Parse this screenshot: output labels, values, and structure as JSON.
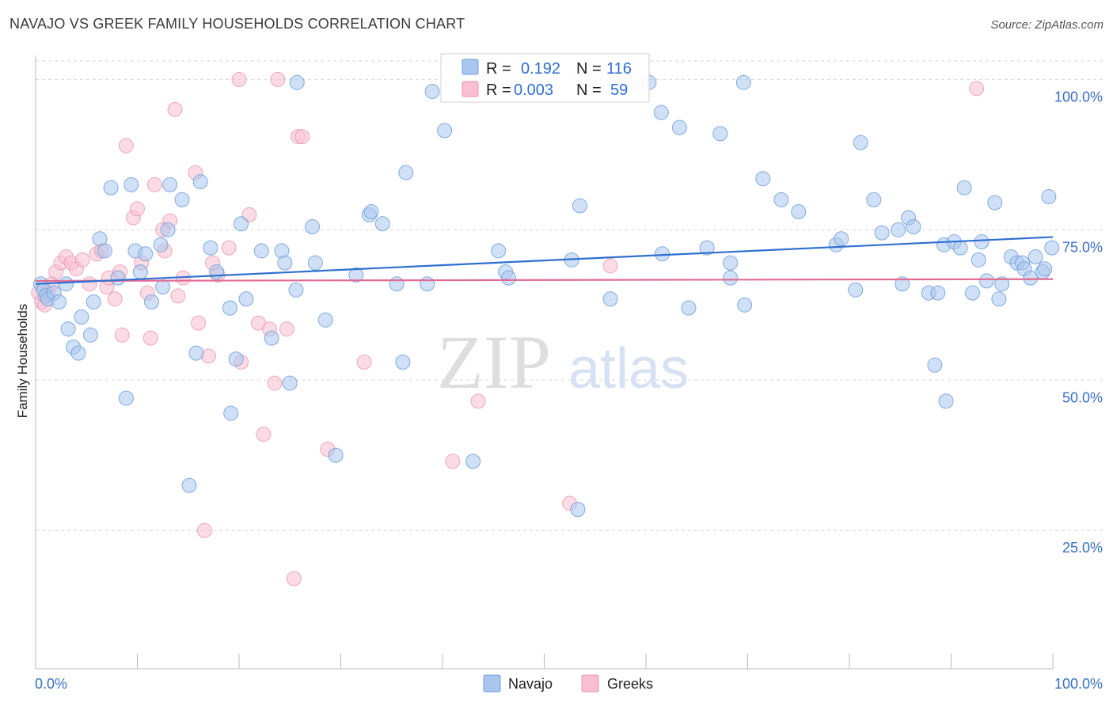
{
  "title": "NAVAJO VS GREEK FAMILY HOUSEHOLDS CORRELATION CHART",
  "source": "Source: ZipAtlas.com",
  "watermark": {
    "zip": "ZIP",
    "atlas": "atlas"
  },
  "legend_box": {
    "r_label": "R =",
    "n_label": "N =",
    "navajo": {
      "r": "0.192",
      "n": "116"
    },
    "greeks": {
      "r": "0.003",
      "n": "59"
    }
  },
  "bottom_legend": {
    "navajo": "Navajo",
    "greeks": "Greeks"
  },
  "colors": {
    "navajo_fill": "#a9c6ee",
    "navajo_stroke": "#6f9fdc",
    "navajo_line": "#2f6fd0",
    "greeks_fill": "#f7bfd0",
    "greeks_stroke": "#e996b0",
    "greeks_line": "#e06a92",
    "grid": "#d6d6d6",
    "tick_label": "#3a6fc4"
  },
  "chart_data": {
    "type": "scatter",
    "title": "NAVAJO VS GREEK FAMILY HOUSEHOLDS CORRELATION CHART",
    "xlabel": "",
    "ylabel": "Family Households",
    "xlim": [
      0,
      100
    ],
    "ylim": [
      2,
      104
    ],
    "x_tick_labels": [
      "0.0%",
      "100.0%"
    ],
    "y_ticks": [
      25,
      50,
      75,
      100
    ],
    "y_tick_labels": [
      "25.0%",
      "50.0%",
      "75.0%",
      "100.0%"
    ],
    "grid": "horizontal dashed",
    "legend": "top-center",
    "series": [
      {
        "name": "Navajo",
        "r": 0.192,
        "n": 116,
        "trend": {
          "x": [
            0,
            100
          ],
          "y": [
            66.0,
            73.8
          ]
        },
        "points": [
          [
            0.5,
            66
          ],
          [
            0.8,
            65
          ],
          [
            1,
            64
          ],
          [
            1.2,
            63.5
          ],
          [
            1.8,
            64.5
          ],
          [
            2.3,
            63
          ],
          [
            3,
            66
          ],
          [
            3.2,
            58.5
          ],
          [
            3.7,
            55.5
          ],
          [
            4.2,
            54.5
          ],
          [
            4.5,
            60.5
          ],
          [
            5.4,
            57.5
          ],
          [
            5.7,
            63
          ],
          [
            6.3,
            73.5
          ],
          [
            6.8,
            71.5
          ],
          [
            7.4,
            82
          ],
          [
            8.1,
            67
          ],
          [
            8.9,
            47
          ],
          [
            9.4,
            82.5
          ],
          [
            9.8,
            71.5
          ],
          [
            10.3,
            68
          ],
          [
            10.8,
            71
          ],
          [
            11.4,
            63
          ],
          [
            12.3,
            72.5
          ],
          [
            12.5,
            65.5
          ],
          [
            13,
            75
          ],
          [
            13.2,
            82.5
          ],
          [
            14.4,
            80
          ],
          [
            15.1,
            32.5
          ],
          [
            15.8,
            54.5
          ],
          [
            16.2,
            83
          ],
          [
            17.2,
            72
          ],
          [
            17.8,
            68
          ],
          [
            19.1,
            62
          ],
          [
            19.2,
            44.5
          ],
          [
            19.7,
            53.5
          ],
          [
            20.2,
            76
          ],
          [
            20.7,
            63.5
          ],
          [
            22.2,
            71.5
          ],
          [
            23.2,
            57
          ],
          [
            24.2,
            71.5
          ],
          [
            24.5,
            69.5
          ],
          [
            25,
            49.5
          ],
          [
            25.6,
            65
          ],
          [
            25.7,
            99.5
          ],
          [
            27.2,
            75.5
          ],
          [
            27.5,
            69.5
          ],
          [
            28.5,
            60
          ],
          [
            29.5,
            37.5
          ],
          [
            31.5,
            67.5
          ],
          [
            32.8,
            77.5
          ],
          [
            33,
            78
          ],
          [
            34.1,
            76
          ],
          [
            35.5,
            66
          ],
          [
            36.1,
            53
          ],
          [
            36.4,
            84.5
          ],
          [
            38.5,
            66
          ],
          [
            39,
            98
          ],
          [
            40.2,
            91.5
          ],
          [
            43,
            36.5
          ],
          [
            45.5,
            71.5
          ],
          [
            46.2,
            68
          ],
          [
            46.5,
            67
          ],
          [
            52.7,
            70
          ],
          [
            53.3,
            28.5
          ],
          [
            53.5,
            79
          ],
          [
            56.5,
            63.5
          ],
          [
            60.3,
            99.5
          ],
          [
            61.5,
            94.5
          ],
          [
            61.6,
            71
          ],
          [
            63.3,
            92
          ],
          [
            64.2,
            62
          ],
          [
            66,
            72
          ],
          [
            67.3,
            91
          ],
          [
            68.3,
            67
          ],
          [
            68.3,
            69.5
          ],
          [
            69.6,
            99.5
          ],
          [
            69.7,
            62.5
          ],
          [
            71.5,
            83.5
          ],
          [
            73.3,
            80
          ],
          [
            75,
            78
          ],
          [
            78.7,
            72.5
          ],
          [
            79.2,
            73.5
          ],
          [
            80.6,
            65
          ],
          [
            81.1,
            89.5
          ],
          [
            82.4,
            80
          ],
          [
            83.2,
            74.5
          ],
          [
            84.8,
            75
          ],
          [
            85.2,
            66
          ],
          [
            85.8,
            77
          ],
          [
            86.3,
            75.5
          ],
          [
            87.8,
            64.5
          ],
          [
            88.4,
            52.5
          ],
          [
            88.7,
            64.5
          ],
          [
            89.3,
            72.5
          ],
          [
            89.5,
            46.5
          ],
          [
            90.3,
            73
          ],
          [
            90.9,
            72
          ],
          [
            91.3,
            82
          ],
          [
            92.1,
            64.5
          ],
          [
            92.7,
            70
          ],
          [
            93,
            73
          ],
          [
            93.5,
            66.5
          ],
          [
            94.3,
            79.5
          ],
          [
            94.7,
            63.5
          ],
          [
            95,
            66
          ],
          [
            95.9,
            70.5
          ],
          [
            96.5,
            69.5
          ],
          [
            97,
            69.5
          ],
          [
            97.2,
            68.5
          ],
          [
            97.8,
            67
          ],
          [
            98.3,
            70.5
          ],
          [
            99,
            68
          ],
          [
            99.2,
            68.5
          ],
          [
            99.6,
            80.5
          ],
          [
            99.9,
            72
          ]
        ]
      },
      {
        "name": "Greeks",
        "r": 0.003,
        "n": 59,
        "trend": {
          "x": [
            0,
            100
          ],
          "y": [
            66.5,
            66.8
          ]
        },
        "points": [
          [
            0.3,
            64.5
          ],
          [
            0.6,
            63
          ],
          [
            0.9,
            62.5
          ],
          [
            1.2,
            64.5
          ],
          [
            1.6,
            66
          ],
          [
            2,
            68
          ],
          [
            2.5,
            69.5
          ],
          [
            3,
            70.5
          ],
          [
            3.5,
            69.5
          ],
          [
            4,
            68.5
          ],
          [
            4.6,
            70
          ],
          [
            5.3,
            66
          ],
          [
            6,
            71
          ],
          [
            6.5,
            71.5
          ],
          [
            7,
            65.5
          ],
          [
            7.2,
            67
          ],
          [
            7.8,
            63.5
          ],
          [
            8.3,
            68
          ],
          [
            8.5,
            57.5
          ],
          [
            8.9,
            89
          ],
          [
            9.6,
            77
          ],
          [
            10,
            78.5
          ],
          [
            10.4,
            69.5
          ],
          [
            11,
            64.5
          ],
          [
            11.3,
            57
          ],
          [
            11.7,
            82.5
          ],
          [
            12.5,
            75
          ],
          [
            12.7,
            71.5
          ],
          [
            13.2,
            76.5
          ],
          [
            13.7,
            95
          ],
          [
            14,
            64
          ],
          [
            14.5,
            67
          ],
          [
            15.7,
            84.5
          ],
          [
            16,
            59.5
          ],
          [
            16.6,
            25
          ],
          [
            17,
            54
          ],
          [
            17.4,
            69.5
          ],
          [
            17.9,
            67.5
          ],
          [
            19,
            72
          ],
          [
            20,
            100
          ],
          [
            20.2,
            53
          ],
          [
            21,
            77.5
          ],
          [
            21.9,
            59.5
          ],
          [
            22.4,
            41
          ],
          [
            23,
            58.5
          ],
          [
            23.5,
            49.5
          ],
          [
            23.8,
            100
          ],
          [
            24.7,
            58.5
          ],
          [
            25.4,
            17
          ],
          [
            25.8,
            90.5
          ],
          [
            26.2,
            90.5
          ],
          [
            28.7,
            38.5
          ],
          [
            32.3,
            53
          ],
          [
            41,
            36.5
          ],
          [
            43.5,
            46.5
          ],
          [
            52.5,
            29.5
          ],
          [
            59,
            99.5
          ],
          [
            56.5,
            69
          ],
          [
            92.5,
            98.5
          ]
        ]
      }
    ]
  }
}
